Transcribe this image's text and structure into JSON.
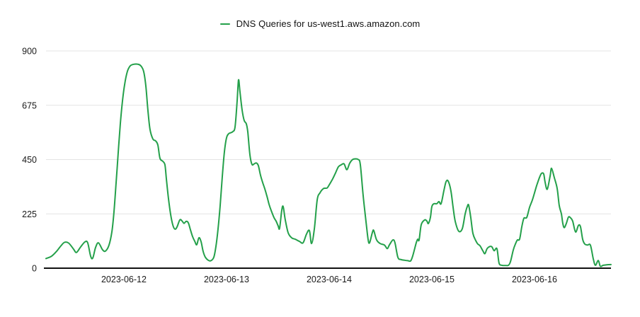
{
  "legend": {
    "label": "DNS Queries for us-west1.aws.amazon.com"
  },
  "colors": {
    "line": "#24a04a",
    "grid": "#e4e4e4",
    "axis": "#111111",
    "text": "#1a1a1a",
    "background": "#ffffff"
  },
  "chart_data": {
    "type": "line",
    "title": "DNS Queries for us-west1.aws.amazon.com",
    "xlabel": "",
    "ylabel": "",
    "x_unit": "days since 2023-06-11 00:00",
    "xlim": [
      0.221,
      5.745
    ],
    "ylim": [
      0,
      900
    ],
    "y_ticks": [
      0,
      225,
      450,
      675,
      900
    ],
    "x_ticks": [
      {
        "value": 1,
        "label": "2023-06-12"
      },
      {
        "value": 2,
        "label": "2023-06-13"
      },
      {
        "value": 3,
        "label": "2023-06-14"
      },
      {
        "value": 4,
        "label": "2023-06-15"
      },
      {
        "value": 5,
        "label": "2023-06-16"
      }
    ],
    "grid": "horizontal",
    "legend_position": "top-center",
    "series": [
      {
        "name": "DNS Queries for us-west1.aws.amazon.com",
        "color": "#24a04a",
        "points": [
          [
            0.241,
            40
          ],
          [
            0.297,
            50
          ],
          [
            0.345,
            70
          ],
          [
            0.386,
            92
          ],
          [
            0.421,
            107
          ],
          [
            0.462,
            104
          ],
          [
            0.51,
            79
          ],
          [
            0.538,
            65
          ],
          [
            0.579,
            88
          ],
          [
            0.621,
            109
          ],
          [
            0.648,
            105
          ],
          [
            0.676,
            50
          ],
          [
            0.697,
            42
          ],
          [
            0.724,
            85
          ],
          [
            0.752,
            105
          ],
          [
            0.793,
            76
          ],
          [
            0.821,
            71
          ],
          [
            0.855,
            95
          ],
          [
            0.883,
            150
          ],
          [
            0.903,
            230
          ],
          [
            0.924,
            350
          ],
          [
            0.945,
            480
          ],
          [
            0.966,
            600
          ],
          [
            0.986,
            690
          ],
          [
            1.007,
            760
          ],
          [
            1.034,
            815
          ],
          [
            1.062,
            838
          ],
          [
            1.097,
            845
          ],
          [
            1.138,
            845
          ],
          [
            1.166,
            838
          ],
          [
            1.193,
            815
          ],
          [
            1.214,
            755
          ],
          [
            1.234,
            655
          ],
          [
            1.255,
            575
          ],
          [
            1.283,
            535
          ],
          [
            1.31,
            527
          ],
          [
            1.331,
            510
          ],
          [
            1.352,
            455
          ],
          [
            1.379,
            443
          ],
          [
            1.4,
            428
          ],
          [
            1.414,
            370
          ],
          [
            1.434,
            290
          ],
          [
            1.455,
            225
          ],
          [
            1.476,
            180
          ],
          [
            1.497,
            162
          ],
          [
            1.517,
            170
          ],
          [
            1.545,
            200
          ],
          [
            1.566,
            196
          ],
          [
            1.586,
            186
          ],
          [
            1.607,
            194
          ],
          [
            1.628,
            188
          ],
          [
            1.648,
            160
          ],
          [
            1.669,
            131
          ],
          [
            1.69,
            112
          ],
          [
            1.71,
            97
          ],
          [
            1.731,
            126
          ],
          [
            1.752,
            110
          ],
          [
            1.772,
            70
          ],
          [
            1.793,
            46
          ],
          [
            1.821,
            33
          ],
          [
            1.848,
            31
          ],
          [
            1.876,
            45
          ],
          [
            1.897,
            90
          ],
          [
            1.917,
            160
          ],
          [
            1.938,
            260
          ],
          [
            1.959,
            380
          ],
          [
            1.979,
            480
          ],
          [
            2.0,
            540
          ],
          [
            2.021,
            557
          ],
          [
            2.041,
            561
          ],
          [
            2.062,
            566
          ],
          [
            2.083,
            585
          ],
          [
            2.103,
            690
          ],
          [
            2.117,
            780
          ],
          [
            2.131,
            730
          ],
          [
            2.152,
            655
          ],
          [
            2.172,
            612
          ],
          [
            2.193,
            598
          ],
          [
            2.207,
            565
          ],
          [
            2.228,
            470
          ],
          [
            2.248,
            430
          ],
          [
            2.269,
            432
          ],
          [
            2.29,
            436
          ],
          [
            2.31,
            425
          ],
          [
            2.331,
            385
          ],
          [
            2.352,
            355
          ],
          [
            2.372,
            330
          ],
          [
            2.393,
            300
          ],
          [
            2.414,
            265
          ],
          [
            2.434,
            240
          ],
          [
            2.462,
            210
          ],
          [
            2.483,
            195
          ],
          [
            2.503,
            175
          ],
          [
            2.517,
            165
          ],
          [
            2.538,
            240
          ],
          [
            2.552,
            255
          ],
          [
            2.572,
            201
          ],
          [
            2.6,
            147
          ],
          [
            2.634,
            126
          ],
          [
            2.669,
            120
          ],
          [
            2.71,
            111
          ],
          [
            2.745,
            105
          ],
          [
            2.779,
            141
          ],
          [
            2.807,
            156
          ],
          [
            2.828,
            102
          ],
          [
            2.855,
            160
          ],
          [
            2.883,
            282
          ],
          [
            2.91,
            312
          ],
          [
            2.945,
            330
          ],
          [
            2.979,
            332
          ],
          [
            3.0,
            345
          ],
          [
            3.034,
            370
          ],
          [
            3.062,
            395
          ],
          [
            3.09,
            420
          ],
          [
            3.117,
            428
          ],
          [
            3.145,
            432
          ],
          [
            3.172,
            408
          ],
          [
            3.2,
            435
          ],
          [
            3.228,
            450
          ],
          [
            3.255,
            453
          ],
          [
            3.283,
            450
          ],
          [
            3.303,
            430
          ],
          [
            3.331,
            300
          ],
          [
            3.359,
            192
          ],
          [
            3.379,
            120
          ],
          [
            3.393,
            105
          ],
          [
            3.421,
            148
          ],
          [
            3.434,
            156
          ],
          [
            3.462,
            117
          ],
          [
            3.497,
            102
          ],
          [
            3.538,
            96
          ],
          [
            3.566,
            81
          ],
          [
            3.586,
            96
          ],
          [
            3.621,
            117
          ],
          [
            3.641,
            105
          ],
          [
            3.669,
            45
          ],
          [
            3.697,
            36
          ],
          [
            3.731,
            33
          ],
          [
            3.766,
            31
          ],
          [
            3.793,
            30
          ],
          [
            3.814,
            51
          ],
          [
            3.848,
            105
          ],
          [
            3.862,
            120
          ],
          [
            3.876,
            117
          ],
          [
            3.897,
            180
          ],
          [
            3.931,
            200
          ],
          [
            3.952,
            195
          ],
          [
            3.966,
            185
          ],
          [
            3.986,
            210
          ],
          [
            4.0,
            255
          ],
          [
            4.021,
            267
          ],
          [
            4.048,
            267
          ],
          [
            4.069,
            276
          ],
          [
            4.09,
            267
          ],
          [
            4.117,
            320
          ],
          [
            4.138,
            358
          ],
          [
            4.159,
            361
          ],
          [
            4.186,
            320
          ],
          [
            4.207,
            252
          ],
          [
            4.228,
            194
          ],
          [
            4.262,
            153
          ],
          [
            4.297,
            164
          ],
          [
            4.324,
            223
          ],
          [
            4.345,
            255
          ],
          [
            4.359,
            261
          ],
          [
            4.379,
            211
          ],
          [
            4.4,
            144
          ],
          [
            4.428,
            114
          ],
          [
            4.448,
            100
          ],
          [
            4.469,
            93
          ],
          [
            4.497,
            72
          ],
          [
            4.517,
            60
          ],
          [
            4.538,
            81
          ],
          [
            4.566,
            90
          ],
          [
            4.586,
            88
          ],
          [
            4.607,
            72
          ],
          [
            4.634,
            81
          ],
          [
            4.655,
            21
          ],
          [
            4.683,
            12
          ],
          [
            4.717,
            11
          ],
          [
            4.745,
            12
          ],
          [
            4.766,
            27
          ],
          [
            4.793,
            75
          ],
          [
            4.814,
            100
          ],
          [
            4.834,
            117
          ],
          [
            4.855,
            120
          ],
          [
            4.876,
            171
          ],
          [
            4.897,
            207
          ],
          [
            4.924,
            210
          ],
          [
            4.952,
            252
          ],
          [
            4.979,
            282
          ],
          [
            5.0,
            312
          ],
          [
            5.021,
            342
          ],
          [
            5.048,
            375
          ],
          [
            5.069,
            393
          ],
          [
            5.09,
            390
          ],
          [
            5.103,
            357
          ],
          [
            5.124,
            327
          ],
          [
            5.152,
            381
          ],
          [
            5.166,
            414
          ],
          [
            5.193,
            375
          ],
          [
            5.221,
            330
          ],
          [
            5.241,
            260
          ],
          [
            5.262,
            225
          ],
          [
            5.276,
            185
          ],
          [
            5.29,
            168
          ],
          [
            5.31,
            185
          ],
          [
            5.331,
            212
          ],
          [
            5.352,
            208
          ],
          [
            5.372,
            195
          ],
          [
            5.4,
            150
          ],
          [
            5.428,
            177
          ],
          [
            5.448,
            172
          ],
          [
            5.469,
            120
          ],
          [
            5.49,
            100
          ],
          [
            5.517,
            96
          ],
          [
            5.545,
            95
          ],
          [
            5.572,
            40
          ],
          [
            5.593,
            12
          ],
          [
            5.621,
            32
          ],
          [
            5.641,
            8
          ],
          [
            5.669,
            12
          ],
          [
            5.703,
            14
          ],
          [
            5.745,
            15
          ]
        ]
      }
    ]
  }
}
